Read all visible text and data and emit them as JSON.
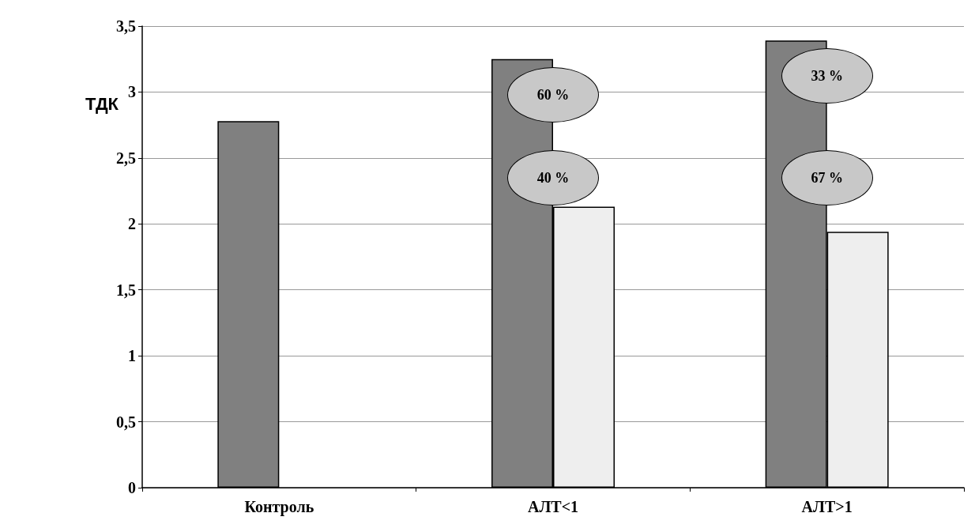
{
  "chart_data": {
    "type": "bar",
    "ylabel": "ТДК",
    "categories": [
      "Контроль",
      "АЛТ<1",
      "АЛТ>1"
    ],
    "series": [
      {
        "color": "#808080",
        "values": [
          2.78,
          3.25,
          3.39
        ]
      },
      {
        "color": "#eeeeee",
        "values": [
          null,
          2.13,
          1.94
        ]
      }
    ],
    "ylim": [
      0,
      3.5
    ],
    "yticks": [
      0,
      {
        "value": 0.5,
        "label": "0,5"
      },
      1,
      {
        "value": 1.5,
        "label": "1,5"
      },
      2,
      {
        "value": 2.5,
        "label": "2,5"
      },
      3,
      {
        "value": 3.5,
        "label": "3,5"
      }
    ],
    "grid": "y",
    "annotations": [
      {
        "text": "60 %",
        "x": "АЛТ<1",
        "y": 2.98
      },
      {
        "text": "40 %",
        "x": "АЛТ<1",
        "y": 2.35
      },
      {
        "text": "33 %",
        "x": "АЛТ>1",
        "y": 3.12
      },
      {
        "text": "67 %",
        "x": "АЛТ>1",
        "y": 2.35
      }
    ]
  }
}
